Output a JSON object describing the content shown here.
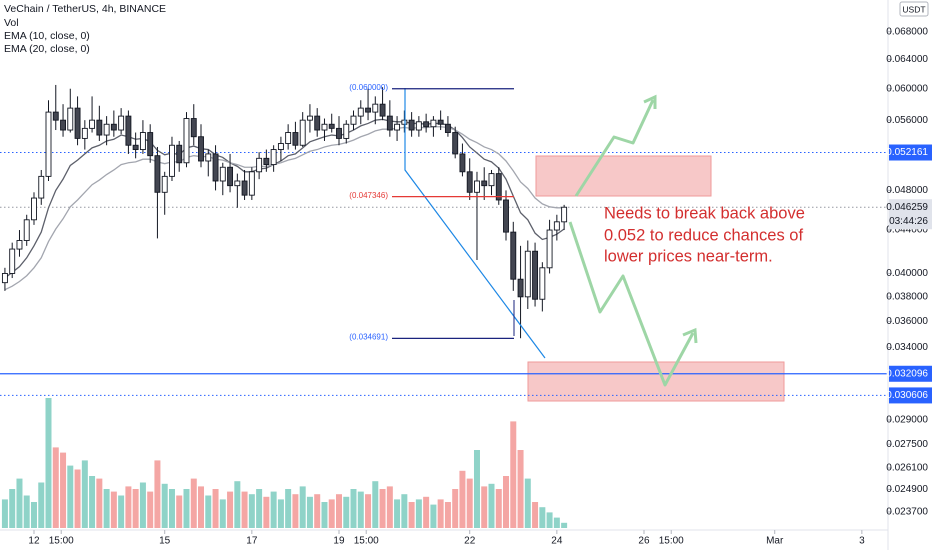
{
  "chart_data": {
    "type": "candlestick",
    "title": "VeChain / TetherUS, 4h, BINANCE",
    "volume_name": "Vol",
    "currency": "USDT",
    "log_scale": true,
    "xlim": [
      11.22,
      31.6
    ],
    "ylim": [
      0.0218,
      0.0729
    ],
    "xticks": [
      12,
      {
        "value": 12.625,
        "label": "15:00"
      },
      15,
      17,
      19,
      {
        "value": 19.625,
        "label": "15:00"
      },
      22,
      24,
      26,
      {
        "value": 26.625,
        "label": "15:00"
      },
      {
        "value": 29,
        "label": "Mar"
      },
      {
        "value": 31,
        "label": "3"
      }
    ],
    "yticks": [
      {
        "value": 0.068,
        "label": "0.068000"
      },
      {
        "value": 0.064,
        "label": "0.064000"
      },
      {
        "value": 0.06,
        "label": "0.060000"
      },
      {
        "value": 0.056,
        "label": "0.056000"
      },
      {
        "value": 0.048,
        "label": "0.048000"
      },
      {
        "value": 0.044,
        "label": "0.044000"
      },
      {
        "value": 0.04,
        "label": "0.040000"
      },
      {
        "value": 0.038,
        "label": "0.038000"
      },
      {
        "value": 0.036,
        "label": "0.036000"
      },
      {
        "value": 0.034,
        "label": "0.034000"
      },
      {
        "value": 0.029,
        "label": "0.029000"
      },
      {
        "value": 0.0275,
        "label": "0.027500"
      },
      {
        "value": 0.0261,
        "label": "0.026100"
      },
      {
        "value": 0.0249,
        "label": "0.024900"
      },
      {
        "value": 0.0237,
        "label": "0.023700"
      }
    ],
    "up_color": "#ffffff",
    "down_color": "#434651",
    "wick_color": "#131722",
    "volume_up_color": "#8fd3c8",
    "volume_down_color": "#f4a6a4",
    "x": [
      11.333,
      11.5,
      11.667,
      11.833,
      12,
      12.167,
      12.333,
      12.5,
      12.667,
      12.833,
      13,
      13.167,
      13.333,
      13.5,
      13.667,
      13.833,
      14,
      14.167,
      14.333,
      14.5,
      14.667,
      14.833,
      15,
      15.167,
      15.333,
      15.5,
      15.667,
      15.833,
      16,
      16.167,
      16.333,
      16.5,
      16.667,
      16.833,
      17,
      17.167,
      17.333,
      17.5,
      17.667,
      17.833,
      18,
      18.167,
      18.333,
      18.5,
      18.667,
      18.833,
      19,
      19.167,
      19.333,
      19.5,
      19.667,
      19.833,
      20,
      20.167,
      20.333,
      20.5,
      20.667,
      20.833,
      21,
      21.167,
      21.333,
      21.5,
      21.667,
      21.833,
      22,
      22.167,
      22.333,
      22.5,
      22.667,
      22.833,
      23,
      23.167,
      23.333,
      23.5,
      23.667,
      23.833,
      24,
      24.167
    ],
    "open": [
      0.0392,
      0.04,
      0.0422,
      0.043,
      0.045,
      0.0472,
      0.0495,
      0.057,
      0.056,
      0.0548,
      0.0575,
      0.0538,
      0.055,
      0.056,
      0.0542,
      0.0555,
      0.0548,
      0.0565,
      0.053,
      0.0525,
      0.0545,
      0.0518,
      0.0478,
      0.0495,
      0.053,
      0.051,
      0.0562,
      0.054,
      0.0512,
      0.052,
      0.049,
      0.0505,
      0.0485,
      0.049,
      0.0475,
      0.05,
      0.0515,
      0.0508,
      0.0525,
      0.0532,
      0.0545,
      0.053,
      0.056,
      0.0565,
      0.0548,
      0.0555,
      0.055,
      0.0538,
      0.0555,
      0.0565,
      0.0575,
      0.057,
      0.058,
      0.0565,
      0.0548,
      0.0555,
      0.056,
      0.0548,
      0.0558,
      0.0552,
      0.056,
      0.0555,
      0.0545,
      0.052,
      0.05,
      0.0478,
      0.049,
      0.0485,
      0.0498,
      0.047,
      0.0438,
      0.0395,
      0.038,
      0.042,
      0.0378,
      0.0405,
      0.044,
      0.0448
    ],
    "high": [
      0.0405,
      0.0428,
      0.044,
      0.0455,
      0.0478,
      0.0502,
      0.0585,
      0.0605,
      0.058,
      0.06,
      0.059,
      0.056,
      0.059,
      0.0578,
      0.0565,
      0.0572,
      0.0575,
      0.0572,
      0.0545,
      0.056,
      0.0555,
      0.0528,
      0.05,
      0.054,
      0.0535,
      0.057,
      0.058,
      0.0555,
      0.0525,
      0.053,
      0.051,
      0.052,
      0.0498,
      0.0502,
      0.0505,
      0.0522,
      0.0525,
      0.053,
      0.054,
      0.0555,
      0.0558,
      0.057,
      0.058,
      0.0575,
      0.0562,
      0.0568,
      0.0565,
      0.056,
      0.0572,
      0.0585,
      0.06,
      0.059,
      0.0602,
      0.0585,
      0.0565,
      0.0572,
      0.057,
      0.0565,
      0.0568,
      0.0565,
      0.0572,
      0.0565,
      0.0552,
      0.0532,
      0.0515,
      0.05,
      0.0505,
      0.0502,
      0.0505,
      0.048,
      0.0448,
      0.0425,
      0.043,
      0.0428,
      0.041,
      0.045,
      0.0455,
      0.0465
    ],
    "low": [
      0.0385,
      0.0396,
      0.0415,
      0.0425,
      0.0445,
      0.0465,
      0.049,
      0.0548,
      0.054,
      0.0545,
      0.053,
      0.0525,
      0.0545,
      0.0535,
      0.053,
      0.054,
      0.0543,
      0.052,
      0.0515,
      0.052,
      0.051,
      0.0432,
      0.0455,
      0.049,
      0.05,
      0.0505,
      0.053,
      0.0505,
      0.0495,
      0.048,
      0.0475,
      0.0478,
      0.0462,
      0.047,
      0.047,
      0.0492,
      0.05,
      0.05,
      0.0512,
      0.0525,
      0.0525,
      0.0528,
      0.0545,
      0.054,
      0.0535,
      0.0545,
      0.053,
      0.0532,
      0.0548,
      0.0555,
      0.056,
      0.0555,
      0.056,
      0.054,
      0.0535,
      0.0545,
      0.054,
      0.054,
      0.0545,
      0.054,
      0.0548,
      0.054,
      0.0515,
      0.0495,
      0.047,
      0.0412,
      0.047,
      0.0475,
      0.0465,
      0.043,
      0.0385,
      0.0347,
      0.037,
      0.0372,
      0.0368,
      0.04,
      0.043,
      0.044
    ],
    "close": [
      0.04,
      0.0422,
      0.043,
      0.045,
      0.0472,
      0.0495,
      0.057,
      0.056,
      0.0548,
      0.0575,
      0.0538,
      0.055,
      0.056,
      0.0542,
      0.0555,
      0.0548,
      0.0565,
      0.053,
      0.0525,
      0.0545,
      0.0518,
      0.0478,
      0.0495,
      0.053,
      0.051,
      0.0562,
      0.054,
      0.0512,
      0.052,
      0.049,
      0.0505,
      0.0485,
      0.049,
      0.0475,
      0.05,
      0.0515,
      0.0508,
      0.0525,
      0.0532,
      0.0545,
      0.053,
      0.056,
      0.0565,
      0.0548,
      0.0555,
      0.055,
      0.0538,
      0.0555,
      0.0565,
      0.0575,
      0.057,
      0.058,
      0.0565,
      0.0548,
      0.0555,
      0.056,
      0.0548,
      0.0558,
      0.0552,
      0.056,
      0.0555,
      0.0545,
      0.052,
      0.05,
      0.0478,
      0.049,
      0.0485,
      0.0498,
      0.047,
      0.0438,
      0.0395,
      0.038,
      0.042,
      0.0378,
      0.0405,
      0.044,
      0.0448,
      0.046259
    ],
    "volume": [
      22,
      30,
      38,
      25,
      20,
      35,
      100,
      62,
      58,
      48,
      45,
      52,
      40,
      38,
      30,
      28,
      25,
      32,
      30,
      35,
      28,
      52,
      34,
      30,
      25,
      30,
      38,
      32,
      25,
      30,
      22,
      28,
      36,
      28,
      26,
      30,
      24,
      28,
      22,
      30,
      26,
      32,
      24,
      26,
      20,
      22,
      26,
      24,
      30,
      28,
      26,
      36,
      30,
      32,
      22,
      26,
      20,
      22,
      24,
      18,
      22,
      20,
      30,
      44,
      38,
      60,
      32,
      34,
      30,
      40,
      82,
      60,
      38,
      20,
      16,
      12,
      8,
      4
    ],
    "series": [
      {
        "name": "EMA (10, close, 0)",
        "color": "#5d606b",
        "values": [
          0.0396,
          0.0401,
          0.0406,
          0.0414,
          0.0425,
          0.0438,
          0.0462,
          0.048,
          0.0492,
          0.0507,
          0.0513,
          0.052,
          0.0527,
          0.053,
          0.0535,
          0.0537,
          0.0542,
          0.054,
          0.0537,
          0.0538,
          0.0534,
          0.0524,
          0.0519,
          0.0521,
          0.0519,
          0.0527,
          0.0529,
          0.0526,
          0.0525,
          0.0519,
          0.0516,
          0.051,
          0.0506,
          0.05,
          0.05,
          0.0503,
          0.0504,
          0.0508,
          0.0512,
          0.0518,
          0.052,
          0.0527,
          0.0534,
          0.0537,
          0.054,
          0.0542,
          0.0541,
          0.0544,
          0.0548,
          0.0553,
          0.0556,
          0.056,
          0.0561,
          0.0559,
          0.0558,
          0.0558,
          0.0556,
          0.0556,
          0.0555,
          0.0556,
          0.0556,
          0.0554,
          0.0548,
          0.0539,
          0.0528,
          0.0521,
          0.0514,
          0.0511,
          0.0504,
          0.0492,
          0.0474,
          0.0457,
          0.045,
          0.0437,
          0.0431,
          0.0433,
          0.0436,
          0.0441
        ]
      },
      {
        "name": "EMA (20, close, 0)",
        "color": "#a3a6af",
        "values": [
          0.0386,
          0.0389,
          0.0393,
          0.0398,
          0.0405,
          0.0414,
          0.0429,
          0.0441,
          0.0451,
          0.0463,
          0.047,
          0.0478,
          0.0486,
          0.0491,
          0.0497,
          0.0502,
          0.0508,
          0.051,
          0.0511,
          0.0514,
          0.0514,
          0.0511,
          0.0509,
          0.0511,
          0.0511,
          0.0516,
          0.0518,
          0.0517,
          0.0517,
          0.0514,
          0.0513,
          0.051,
          0.0508,
          0.0505,
          0.0505,
          0.0506,
          0.0506,
          0.0508,
          0.051,
          0.0513,
          0.0515,
          0.0519,
          0.0523,
          0.0525,
          0.0528,
          0.053,
          0.0531,
          0.0533,
          0.0536,
          0.054,
          0.0543,
          0.0547,
          0.0549,
          0.0549,
          0.055,
          0.0551,
          0.055,
          0.0551,
          0.0551,
          0.0552,
          0.0552,
          0.0551,
          0.0548,
          0.0543,
          0.0537,
          0.0533,
          0.0528,
          0.0525,
          0.052,
          0.0512,
          0.0501,
          0.0489,
          0.0482,
          0.0472,
          0.0466,
          0.0463,
          0.0462,
          0.0462
        ]
      }
    ],
    "price_lines": [
      {
        "value": 0.052161,
        "color": "#2962ff",
        "style": "dotted"
      },
      {
        "value": 0.046259,
        "color": "#9598a1",
        "style": "dotted",
        "countdown": "03:44:26"
      },
      {
        "value": 0.032096,
        "color": "#2962ff",
        "style": "solid"
      },
      {
        "value": 0.030606,
        "color": "#2962ff",
        "style": "dotted"
      }
    ],
    "levels": [
      {
        "value": 0.06,
        "label": "(0.060000)",
        "color": "#1a237e",
        "label_color": "#2962ff"
      },
      {
        "value": 0.047346,
        "label": "(0.047346)",
        "color": "#e53935",
        "label_color": "#e53935"
      },
      {
        "value": 0.034691,
        "label": "(0.034691)",
        "color": "#1a237e",
        "label_color": "#2962ff"
      }
    ],
    "note": [
      "Needs to break back above",
      "0.052 to reduce chances of",
      "lower prices near-term."
    ]
  }
}
